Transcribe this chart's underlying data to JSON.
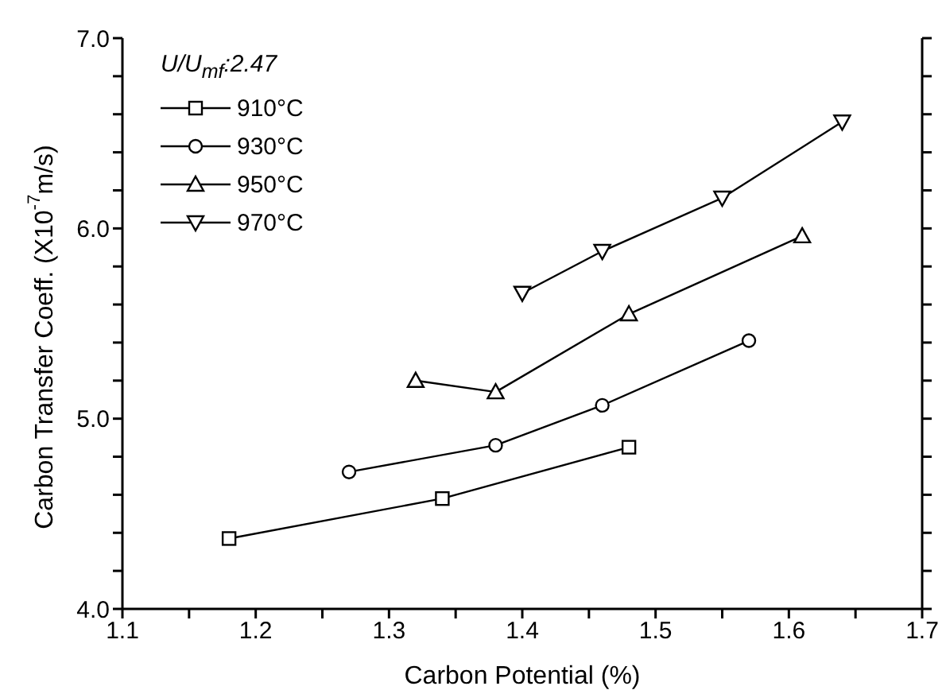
{
  "chart_data": {
    "type": "line",
    "xlabel": "Carbon Potential (%)",
    "ylabel": "Carbon Transfer Coeff. (X10$^{-7}$m/s)",
    "legend_title": "U/U$_{mf}$:2.47",
    "xlim": [
      1.1,
      1.7
    ],
    "xticks": [
      1.1,
      {
        "value": 1.15,
        "label": null
      },
      1.2,
      {
        "value": 1.25,
        "label": null
      },
      1.3,
      {
        "value": 1.35,
        "label": null
      },
      1.4,
      {
        "value": 1.45,
        "label": null
      },
      1.5,
      {
        "value": 1.55,
        "label": null
      },
      1.6,
      {
        "value": 1.65,
        "label": null
      },
      1.7
    ],
    "ylim": [
      4,
      7
    ],
    "yticks": [
      {
        "value": 4,
        "label": "4.0"
      },
      {
        "value": 4.2,
        "label": null
      },
      {
        "value": 4.4,
        "label": null
      },
      {
        "value": 4.6,
        "label": null
      },
      {
        "value": 4.8,
        "label": null
      },
      {
        "value": 5,
        "label": "5.0"
      },
      {
        "value": 5.2,
        "label": null
      },
      {
        "value": 5.4,
        "label": null
      },
      {
        "value": 5.6,
        "label": null
      },
      {
        "value": 5.8,
        "label": null
      },
      {
        "value": 6,
        "label": "6.0"
      },
      {
        "value": 6.2,
        "label": null
      },
      {
        "value": 6.4,
        "label": null
      },
      {
        "value": 6.6,
        "label": null
      },
      {
        "value": 6.8,
        "label": null
      },
      {
        "value": 7,
        "label": "7.0"
      }
    ],
    "grid": false,
    "legend": "top left",
    "line_style": "solid",
    "series": [
      {
        "name": "910°C",
        "color": "#000000",
        "marker": "square",
        "x": [
          1.18,
          1.34,
          1.48
        ],
        "values": [
          4.37,
          4.58,
          4.85
        ]
      },
      {
        "name": "930°C",
        "color": "#000000",
        "marker": "circle",
        "x": [
          1.27,
          1.38,
          1.46,
          1.57
        ],
        "values": [
          4.72,
          4.86,
          5.07,
          5.41
        ]
      },
      {
        "name": "950°C",
        "color": "#000000",
        "marker": "triangle",
        "x": [
          1.32,
          1.38,
          1.48,
          1.61
        ],
        "values": [
          5.2,
          5.14,
          5.55,
          5.96
        ]
      },
      {
        "name": "970°C",
        "color": "#000000",
        "marker": "triangle-down",
        "x": [
          1.4,
          1.46,
          1.55,
          1.64
        ],
        "values": [
          5.66,
          5.88,
          6.16,
          6.56
        ]
      }
    ]
  }
}
